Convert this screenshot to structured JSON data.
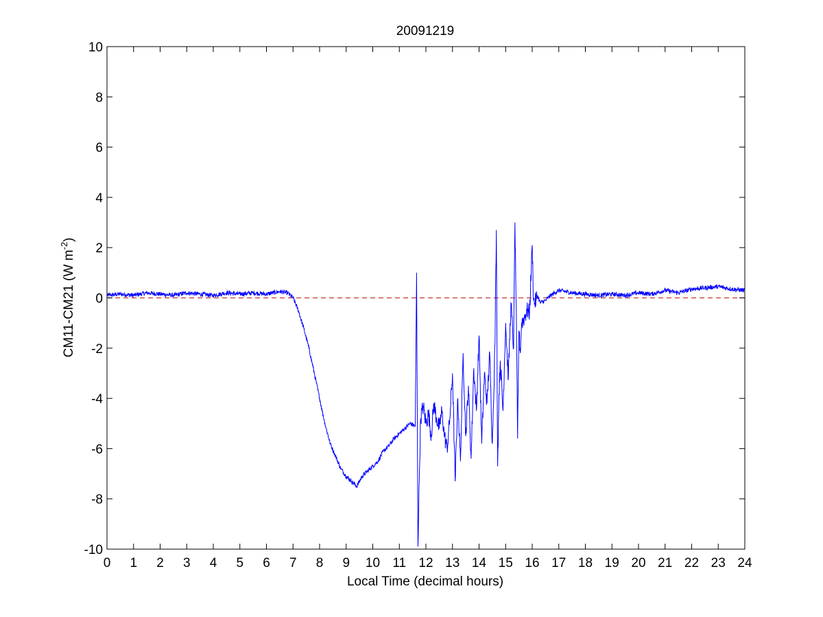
{
  "chart_data": {
    "type": "line",
    "title": "20091219",
    "xlabel": "Local Time (decimal hours)",
    "ylabel_main": "CM11-CM21 (W m",
    "ylabel_sup": "-2",
    "ylabel_end": ")",
    "xlim": [
      0,
      24
    ],
    "ylim": [
      -10,
      10
    ],
    "xticks": [
      "0",
      "1",
      "2",
      "3",
      "4",
      "5",
      "6",
      "7",
      "8",
      "9",
      "10",
      "11",
      "12",
      "13",
      "14",
      "15",
      "16",
      "17",
      "18",
      "19",
      "20",
      "21",
      "22",
      "23",
      "24"
    ],
    "yticks": [
      "10",
      "8",
      "6",
      "4",
      "2",
      "0",
      "-2",
      "-4",
      "-6",
      "-8",
      "-10"
    ],
    "grid": false,
    "reference_line": {
      "y": 0,
      "style": "dashed",
      "color": "#c0392b"
    },
    "series": [
      {
        "color": "#0000ff",
        "x": [
          0,
          0.5,
          1,
          1.5,
          2,
          2.5,
          3,
          3.5,
          4,
          4.5,
          5,
          5.5,
          6,
          6.5,
          6.8,
          7.0,
          7.2,
          7.4,
          7.6,
          7.8,
          8.0,
          8.2,
          8.4,
          8.6,
          8.8,
          9.0,
          9.2,
          9.4,
          9.6,
          9.8,
          10.0,
          10.2,
          10.4,
          10.6,
          10.8,
          11.0,
          11.2,
          11.4,
          11.6,
          11.65,
          11.7,
          11.75,
          11.8,
          11.9,
          12.0,
          12.1,
          12.2,
          12.3,
          12.4,
          12.5,
          12.6,
          12.7,
          12.8,
          12.9,
          13.0,
          13.1,
          13.2,
          13.3,
          13.4,
          13.5,
          13.6,
          13.7,
          13.8,
          13.9,
          14.0,
          14.1,
          14.2,
          14.3,
          14.4,
          14.5,
          14.6,
          14.65,
          14.7,
          14.75,
          14.8,
          14.9,
          15.0,
          15.1,
          15.2,
          15.3,
          15.35,
          15.4,
          15.45,
          15.5,
          15.55,
          15.6,
          15.7,
          15.8,
          15.9,
          16.0,
          16.05,
          16.1,
          16.2,
          16.3,
          16.5,
          16.7,
          17.0,
          17.5,
          18,
          18.5,
          19,
          19.5,
          20,
          20.5,
          21,
          21.5,
          22,
          22.5,
          23,
          23.5,
          24
        ],
        "y": [
          0.1,
          0.15,
          0.1,
          0.2,
          0.15,
          0.1,
          0.2,
          0.15,
          0.1,
          0.2,
          0.15,
          0.2,
          0.15,
          0.25,
          0.2,
          0.0,
          -0.5,
          -1.2,
          -2.0,
          -3.0,
          -4.0,
          -5.0,
          -5.8,
          -6.3,
          -6.8,
          -7.1,
          -7.3,
          -7.5,
          -7.1,
          -6.9,
          -6.7,
          -6.5,
          -6.1,
          -5.9,
          -5.6,
          -5.4,
          -5.2,
          -5.0,
          -5.1,
          1.0,
          -9.9,
          -7.3,
          -4.8,
          -4.3,
          -5.0,
          -4.6,
          -5.5,
          -4.2,
          -4.8,
          -5.2,
          -4.5,
          -5.5,
          -6.0,
          -4.8,
          -3.0,
          -7.3,
          -4.0,
          -6.5,
          -2.2,
          -5.5,
          -3.5,
          -6.4,
          -2.8,
          -4.5,
          -1.5,
          -5.8,
          -3.0,
          -4.2,
          -2.2,
          -5.8,
          -1.8,
          2.7,
          -6.7,
          -3.8,
          -2.5,
          -4.5,
          -1.0,
          -3.2,
          -0.2,
          -2.0,
          3.0,
          -0.6,
          -5.6,
          -1.3,
          -2.2,
          -1.0,
          -0.8,
          -0.5,
          -0.6,
          2.1,
          -0.1,
          -0.2,
          0.1,
          -0.2,
          -0.1,
          0.1,
          0.3,
          0.2,
          0.15,
          0.1,
          0.15,
          0.1,
          0.2,
          0.15,
          0.3,
          0.2,
          0.35,
          0.4,
          0.45,
          0.35,
          0.3
        ]
      }
    ]
  }
}
